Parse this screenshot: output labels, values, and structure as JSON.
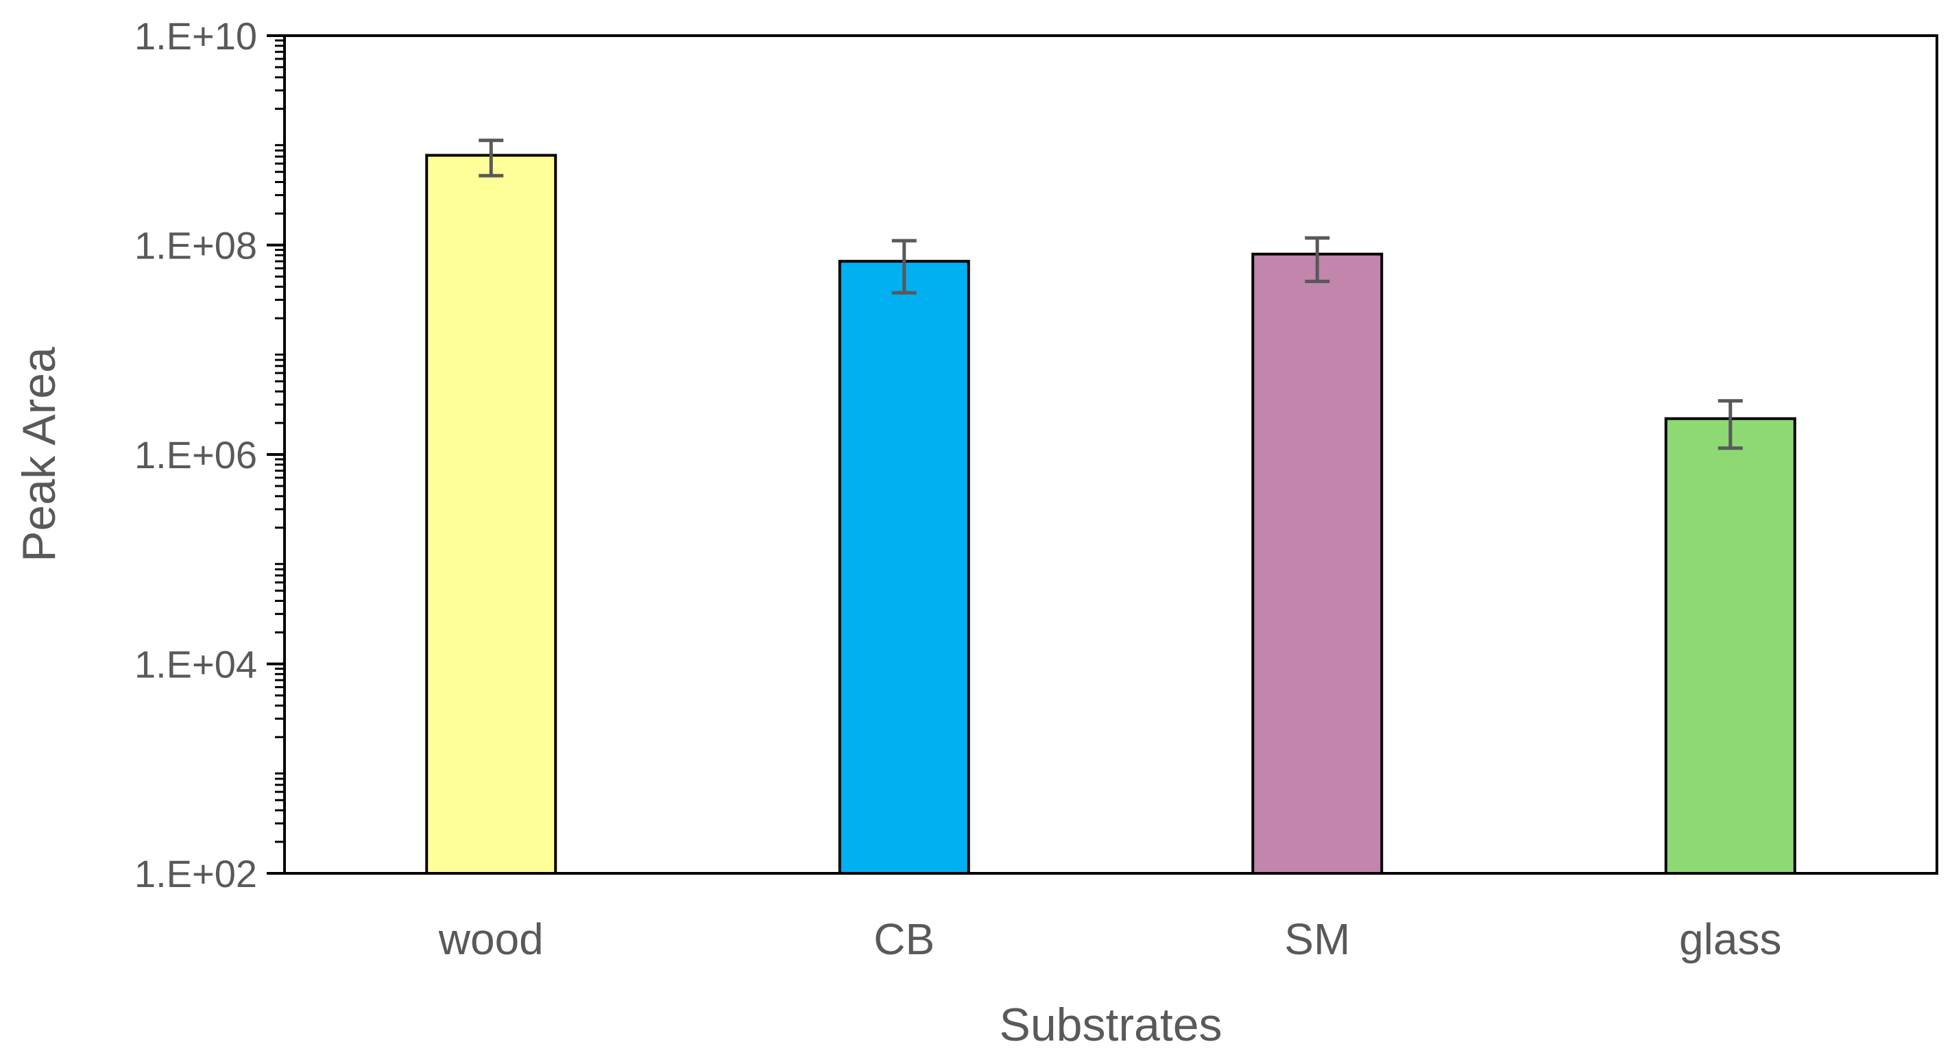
{
  "chart_data": {
    "type": "bar",
    "categories": [
      "wood",
      "CB",
      "SM",
      "glass"
    ],
    "values": [
      720000000,
      70000000,
      82000000,
      2200000
    ],
    "error_low": [
      460000000,
      35000000,
      45000000,
      1150000
    ],
    "error_high": [
      1000000000,
      110000000,
      117000000,
      3250000
    ],
    "bar_colors": [
      "#FFFF99",
      "#00B0F0",
      "#C285AC",
      "#8ED973"
    ],
    "title": "",
    "xlabel": "Substrates",
    "ylabel": "Peak Area",
    "y_scale": "log",
    "ylim": [
      100,
      10000000000
    ],
    "y_ticks": [
      100,
      10000,
      1000000,
      100000000,
      10000000000
    ],
    "y_tick_labels": [
      "1.E+02",
      "1.E+04",
      "1.E+06",
      "1.E+08",
      "1.E+10"
    ],
    "grid": false,
    "legend": "none"
  }
}
